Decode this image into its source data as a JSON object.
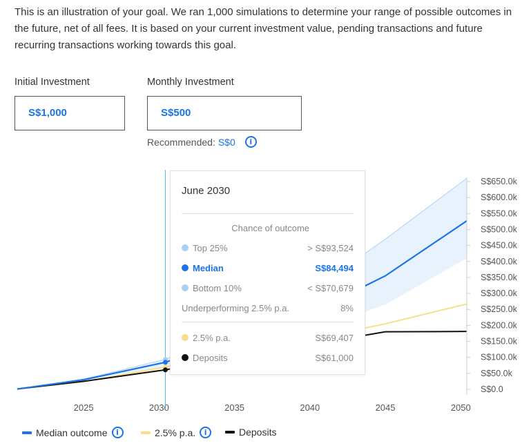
{
  "intro_text": "This is an illustration of your goal. We ran 1,000 simulations to determine your range of possible outcomes in the future, net of all fees. It is based on your current investment value, pending transactions and future recurring transactions working towards this goal.",
  "inputs": {
    "initial": {
      "label": "Initial Investment",
      "value": "S$1,000"
    },
    "monthly": {
      "label": "Monthly Investment",
      "value": "S$500"
    },
    "recommended_label": "Recommended:",
    "recommended_value": "S$0"
  },
  "tooltip": {
    "title": "June 2030",
    "header": "Chance of outcome",
    "rows": [
      {
        "label": "Top 25%",
        "value": "> S$93,524"
      },
      {
        "label": "Median",
        "value": "S$84,494"
      },
      {
        "label": "Bottom 10%",
        "value": "< S$70,679"
      },
      {
        "label": "Underperforming 2.5% p.a.",
        "value": "8%"
      },
      {
        "label": "2.5% p.a.",
        "value": "S$69,407"
      },
      {
        "label": "Deposits",
        "value": "S$61,000"
      }
    ]
  },
  "legend": {
    "median": "Median outcome",
    "benchmark": "2.5% p.a.",
    "deposits": "Deposits"
  },
  "colors": {
    "median": "#1a73e8",
    "band": "#e8f2fc",
    "top": "#a9cff5",
    "benchmark": "#f9dd8a",
    "deposits": "#111111",
    "hover_line": "#5ab4e6"
  },
  "icons": [
    "info-icon"
  ],
  "chart_data": {
    "type": "line",
    "x_ticks": [
      2025,
      2030,
      2035,
      2040,
      2045,
      2050
    ],
    "y_ticks": [
      "S$0.0",
      "S$50.0k",
      "S$100.0k",
      "S$150.0k",
      "S$200.0k",
      "S$250.0k",
      "S$300.0k",
      "S$350.0k",
      "S$400.0k",
      "S$450.0k",
      "S$500.0k",
      "S$550.0k",
      "S$600.0k",
      "S$650.0k"
    ],
    "xlim": [
      2020.6,
      2050.4
    ],
    "ylim": [
      0,
      650
    ],
    "hover_x": 2030.42,
    "series": [
      {
        "name": "Median outcome",
        "x": [
          2020.6,
          2025,
          2030.42,
          2035,
          2040,
          2043.5,
          2045,
          2050.4
        ],
        "values": [
          1,
          30,
          84.5,
          160,
          260,
          320,
          355,
          527
        ]
      },
      {
        "name": "Top 25%",
        "x": [
          2020.6,
          2025,
          2030.42,
          2035,
          2040,
          2043.5,
          2045,
          2050.4
        ],
        "values": [
          1,
          32,
          93.5,
          190,
          330,
          420,
          470,
          660
        ]
      },
      {
        "name": "Bottom 10%",
        "x": [
          2020.6,
          2025,
          2030.42,
          2035,
          2040,
          2043.5,
          2045,
          2050.4
        ],
        "values": [
          1,
          26,
          70.7,
          120,
          200,
          240,
          265,
          410
        ]
      },
      {
        "name": "2.5% p.a.",
        "x": [
          2020.6,
          2025,
          2030.42,
          2035,
          2040,
          2043.5,
          2045,
          2050.4
        ],
        "values": [
          1,
          24,
          69.4,
          110,
          165,
          190,
          205,
          267
        ]
      },
      {
        "name": "Deposits",
        "x": [
          2020.6,
          2025,
          2030.42,
          2035,
          2040,
          2043.5,
          2045,
          2050.4
        ],
        "values": [
          1,
          25,
          61,
          100,
          140,
          168,
          180,
          181
        ]
      }
    ]
  }
}
